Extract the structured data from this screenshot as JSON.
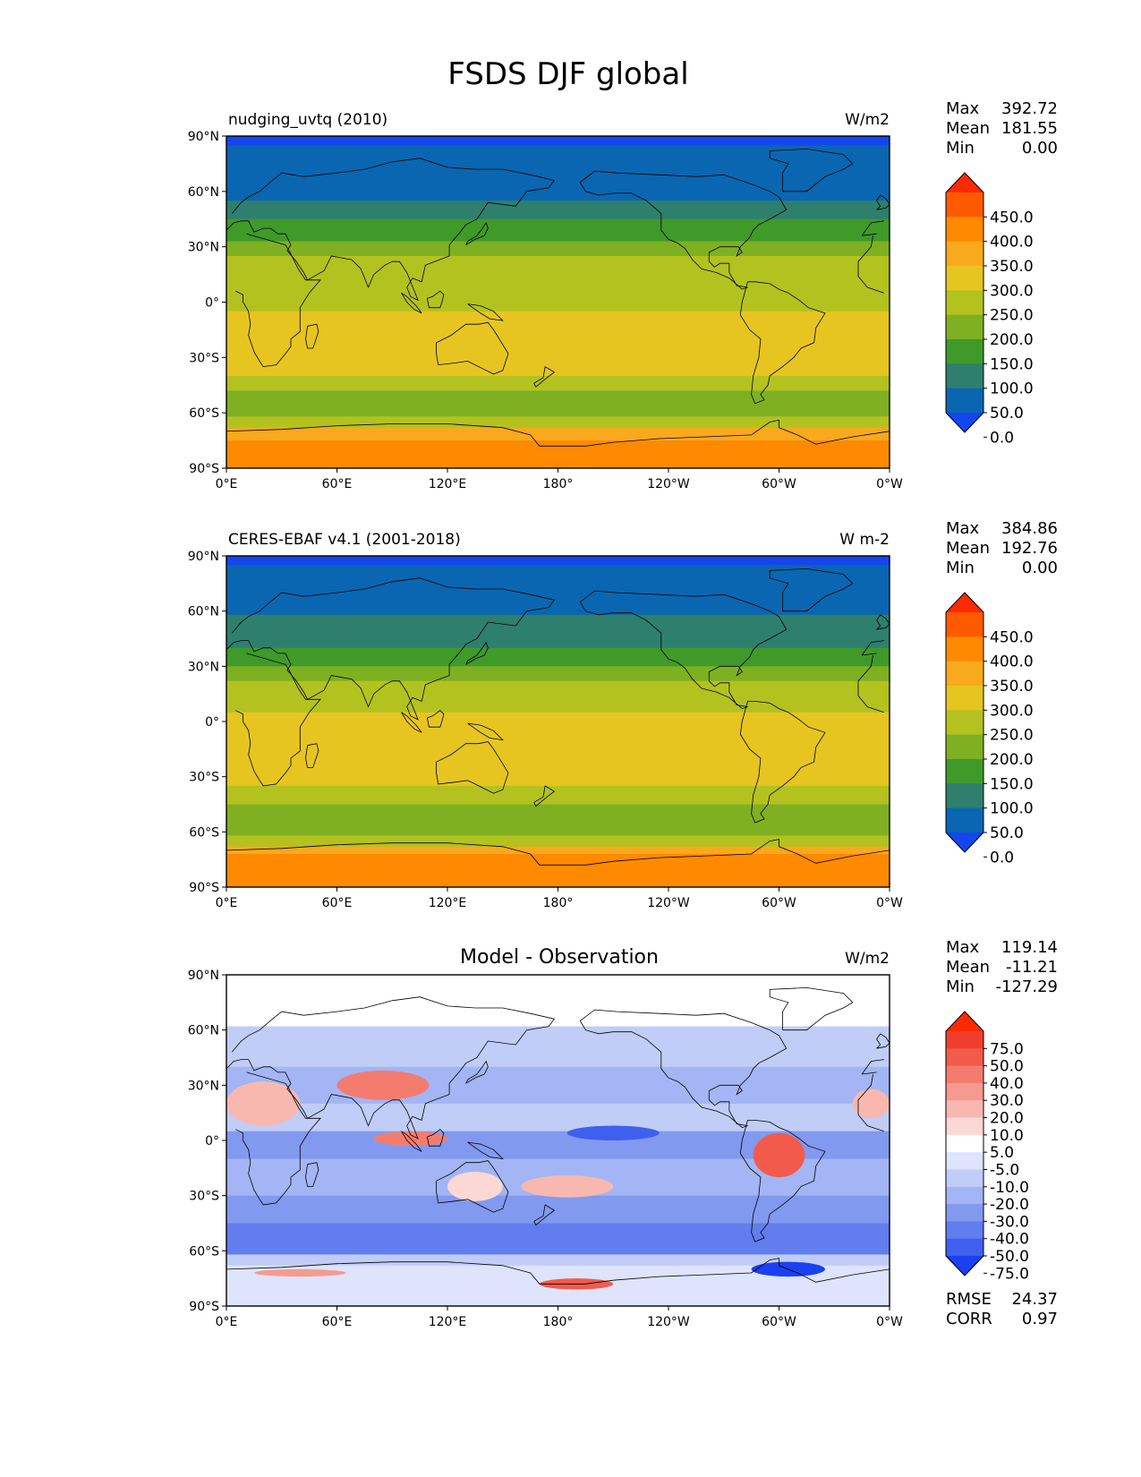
{
  "figure": {
    "title": "FSDS DJF global"
  },
  "axes": {
    "lat_ticks": [
      "90°N",
      "60°N",
      "30°N",
      "0°",
      "30°S",
      "60°S",
      "90°S"
    ],
    "lon_ticks": [
      "0°E",
      "60°E",
      "120°E",
      "180°",
      "120°W",
      "60°W",
      "0°W"
    ]
  },
  "chart_data": [
    {
      "type": "heatmap",
      "panel": "test",
      "left_title": "nudging_uvtq (2010)",
      "center_title": "",
      "units": "W/m2",
      "stats": [
        {
          "label": "Max",
          "value": "392.72"
        },
        {
          "label": "Mean",
          "value": "181.55"
        },
        {
          "label": "Min",
          "value": "0.00"
        }
      ],
      "colorbar": {
        "labels": [
          "450.0",
          "400.0",
          "350.0",
          "300.0",
          "250.0",
          "200.0",
          "150.0",
          "100.0",
          "50.0",
          "0.0"
        ],
        "colors": [
          "#ff2a00",
          "#ff5a00",
          "#ff8a00",
          "#f8a91d",
          "#e6c520",
          "#b3c21f",
          "#7fb021",
          "#3f9a2a",
          "#2e7f6e",
          "#0a66b0",
          "#1446f0"
        ]
      },
      "bands": [
        {
          "lat": [
            90,
            85
          ],
          "color": "#1446f0"
        },
        {
          "lat": [
            85,
            55
          ],
          "color": "#0a66b0"
        },
        {
          "lat": [
            55,
            45
          ],
          "color": "#2e7f6e"
        },
        {
          "lat": [
            45,
            33
          ],
          "color": "#3f9a2a"
        },
        {
          "lat": [
            33,
            25
          ],
          "color": "#7fb021"
        },
        {
          "lat": [
            25,
            12
          ],
          "color": "#b3c21f"
        },
        {
          "lat": [
            12,
            -5
          ],
          "color": "#b3c21f"
        },
        {
          "lat": [
            -5,
            -28
          ],
          "color": "#e6c520"
        },
        {
          "lat": [
            -28,
            -40
          ],
          "color": "#e6c520"
        },
        {
          "lat": [
            -40,
            -48
          ],
          "color": "#b3c21f"
        },
        {
          "lat": [
            -48,
            -62
          ],
          "color": "#7fb021"
        },
        {
          "lat": [
            -62,
            -68
          ],
          "color": "#b3c21f"
        },
        {
          "lat": [
            -68,
            -75
          ],
          "color": "#f8a91d"
        },
        {
          "lat": [
            -75,
            -90
          ],
          "color": "#ff8a00"
        }
      ]
    },
    {
      "type": "heatmap",
      "panel": "reference",
      "left_title": "CERES-EBAF v4.1 (2001-2018)",
      "center_title": "",
      "units": "W m-2",
      "stats": [
        {
          "label": "Max",
          "value": "384.86"
        },
        {
          "label": "Mean",
          "value": "192.76"
        },
        {
          "label": "Min",
          "value": "0.00"
        }
      ],
      "colorbar": {
        "labels": [
          "450.0",
          "400.0",
          "350.0",
          "300.0",
          "250.0",
          "200.0",
          "150.0",
          "100.0",
          "50.0",
          "0.0"
        ],
        "colors": [
          "#ff2a00",
          "#ff5a00",
          "#ff8a00",
          "#f8a91d",
          "#e6c520",
          "#b3c21f",
          "#7fb021",
          "#3f9a2a",
          "#2e7f6e",
          "#0a66b0",
          "#1446f0"
        ]
      },
      "bands": [
        {
          "lat": [
            90,
            85
          ],
          "color": "#1446f0"
        },
        {
          "lat": [
            85,
            58
          ],
          "color": "#0a66b0"
        },
        {
          "lat": [
            58,
            40
          ],
          "color": "#2e7f6e"
        },
        {
          "lat": [
            40,
            30
          ],
          "color": "#3f9a2a"
        },
        {
          "lat": [
            30,
            22
          ],
          "color": "#7fb021"
        },
        {
          "lat": [
            22,
            5
          ],
          "color": "#b3c21f"
        },
        {
          "lat": [
            5,
            -10
          ],
          "color": "#e6c520"
        },
        {
          "lat": [
            -10,
            -35
          ],
          "color": "#e6c520"
        },
        {
          "lat": [
            -35,
            -45
          ],
          "color": "#b3c21f"
        },
        {
          "lat": [
            -45,
            -62
          ],
          "color": "#7fb021"
        },
        {
          "lat": [
            -62,
            -68
          ],
          "color": "#b3c21f"
        },
        {
          "lat": [
            -68,
            -72
          ],
          "color": "#f8a91d"
        },
        {
          "lat": [
            -72,
            -90
          ],
          "color": "#ff8a00"
        }
      ]
    },
    {
      "type": "heatmap",
      "panel": "difference",
      "left_title": "",
      "center_title": "Model - Observation",
      "units": "W/m2",
      "stats": [
        {
          "label": "Max",
          "value": "119.14"
        },
        {
          "label": "Mean",
          "value": "-11.21"
        },
        {
          "label": "Min",
          "value": "-127.29"
        }
      ],
      "bottom_stats": [
        {
          "label": "RMSE",
          "value": "24.37"
        },
        {
          "label": "CORR",
          "value": "0.97"
        }
      ],
      "colorbar": {
        "labels": [
          "75.0",
          "50.0",
          "40.0",
          "30.0",
          "20.0",
          "10.0",
          "5.0",
          "-5.0",
          "-10.0",
          "-20.0",
          "-30.0",
          "-40.0",
          "-50.0",
          "-75.0"
        ],
        "colors": [
          "#ff2a00",
          "#f03e2e",
          "#f25b4c",
          "#f47c6f",
          "#f69a90",
          "#f8b8b0",
          "#fbd8d4",
          "#ffffff",
          "#dde4fb",
          "#c0cdf7",
          "#a3b5f4",
          "#8299f0",
          "#627ded",
          "#3f5fef",
          "#1a40f2"
        ]
      },
      "bands": [
        {
          "lat": [
            90,
            62
          ],
          "color": "#ffffff"
        },
        {
          "lat": [
            62,
            40
          ],
          "color": "#c0cdf7"
        },
        {
          "lat": [
            40,
            20
          ],
          "color": "#a3b5f4"
        },
        {
          "lat": [
            20,
            5
          ],
          "color": "#c0cdf7"
        },
        {
          "lat": [
            5,
            -10
          ],
          "color": "#8299f0"
        },
        {
          "lat": [
            -10,
            -30
          ],
          "color": "#a3b5f4"
        },
        {
          "lat": [
            -30,
            -45
          ],
          "color": "#8299f0"
        },
        {
          "lat": [
            -45,
            -62
          ],
          "color": "#627ded"
        },
        {
          "lat": [
            -62,
            -68
          ],
          "color": "#c0cdf7"
        },
        {
          "lat": [
            -68,
            -90
          ],
          "color": "#dde4fb"
        }
      ],
      "blobs": [
        {
          "lon": 20,
          "lat": 20,
          "rx": 20,
          "ry": 12,
          "color": "#f8b8b0"
        },
        {
          "lon": 85,
          "lat": 30,
          "rx": 25,
          "ry": 8,
          "color": "#f47c6f"
        },
        {
          "lon": 100,
          "lat": 1,
          "rx": 20,
          "ry": 4,
          "color": "#f47c6f"
        },
        {
          "lon": 300,
          "lat": -8,
          "rx": 14,
          "ry": 12,
          "color": "#f25b4c"
        },
        {
          "lon": 210,
          "lat": 4,
          "rx": 25,
          "ry": 4,
          "color": "#3f5fef"
        },
        {
          "lon": 185,
          "lat": -25,
          "rx": 25,
          "ry": 6,
          "color": "#f8b8b0"
        },
        {
          "lon": 135,
          "lat": -25,
          "rx": 15,
          "ry": 8,
          "color": "#fbd8d4"
        },
        {
          "lon": 350,
          "lat": 20,
          "rx": 10,
          "ry": 8,
          "color": "#f8b8b0"
        },
        {
          "lon": 190,
          "lat": -78,
          "rx": 20,
          "ry": 3,
          "color": "#f25b4c"
        },
        {
          "lon": 40,
          "lat": -72,
          "rx": 25,
          "ry": 2,
          "color": "#f69a90"
        },
        {
          "lon": 305,
          "lat": -70,
          "rx": 20,
          "ry": 4,
          "color": "#1a40f2"
        }
      ]
    }
  ]
}
